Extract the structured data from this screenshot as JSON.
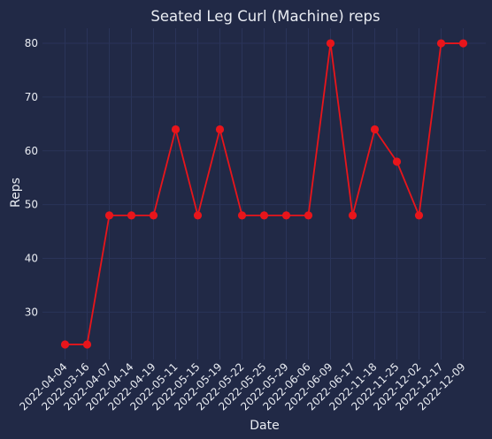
{
  "colors": {
    "background": "#212946",
    "grid": "#2A3459",
    "series_line": "#E8151B",
    "text": "#E9ECF2"
  },
  "chart_data": {
    "type": "line",
    "title": "Seated Leg Curl (Machine) reps",
    "xlabel": "Date",
    "ylabel": "Reps",
    "x": [
      "2022-04-04",
      "2022-03-16",
      "2022-04-07",
      "2022-04-14",
      "2022-04-19",
      "2022-05-11",
      "2022-05-15",
      "2022-05-19",
      "2022-05-22",
      "2022-05-25",
      "2022-05-29",
      "2022-06-06",
      "2022-06-09",
      "2022-06-17",
      "2022-11-18",
      "2022-11-25",
      "2022-12-02",
      "2022-12-17",
      "2022-12-09"
    ],
    "series": [
      {
        "values": [
          24,
          24,
          48,
          48,
          48,
          64,
          48,
          64,
          48,
          48,
          48,
          48,
          80,
          48,
          64,
          58,
          48,
          80,
          80
        ]
      }
    ],
    "ylim": [
      21.2,
      82.8
    ],
    "yticks": [
      30,
      40,
      50,
      60,
      70,
      80
    ],
    "grid": true,
    "legend": "none"
  }
}
